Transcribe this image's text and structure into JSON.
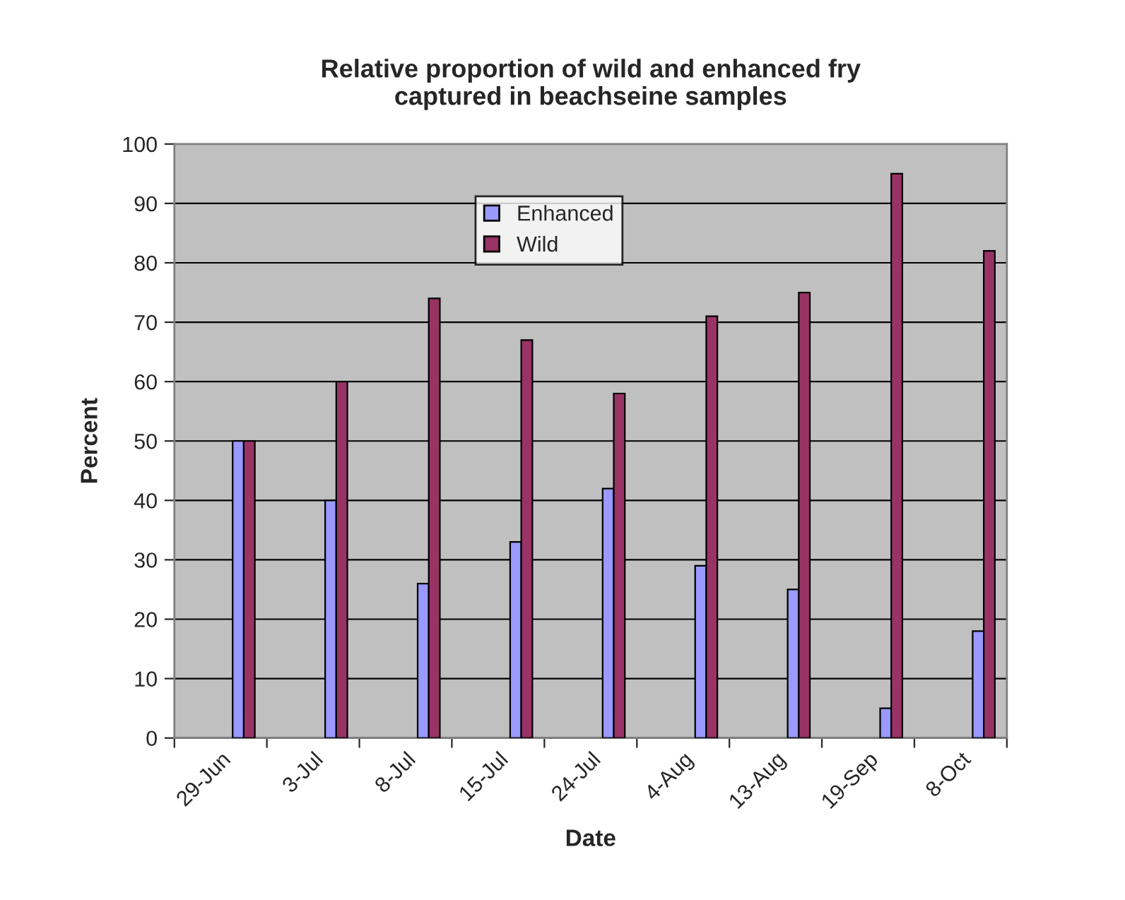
{
  "chart_data": {
    "type": "bar",
    "title": "Relative proportion of wild and enhanced fry\ncaptured in beachseine samples",
    "xlabel": "Date",
    "ylabel": "Percent",
    "categories": [
      "29-Jun",
      "3-Jul",
      "8-Jul",
      "15-Jul",
      "24-Jul",
      "4-Aug",
      "13-Aug",
      "19-Sep",
      "8-Oct"
    ],
    "series": [
      {
        "name": "Enhanced",
        "color": "#9999ff",
        "values": [
          50,
          40,
          26,
          33,
          42,
          29,
          25,
          5,
          18
        ]
      },
      {
        "name": "Wild",
        "color": "#993366",
        "values": [
          50,
          60,
          74,
          67,
          58,
          71,
          75,
          95,
          82
        ]
      }
    ],
    "ylim": [
      0,
      100
    ],
    "yticks": [
      0,
      10,
      20,
      30,
      40,
      50,
      60,
      70,
      80,
      90,
      100
    ],
    "grid": "y",
    "legend": "top"
  }
}
